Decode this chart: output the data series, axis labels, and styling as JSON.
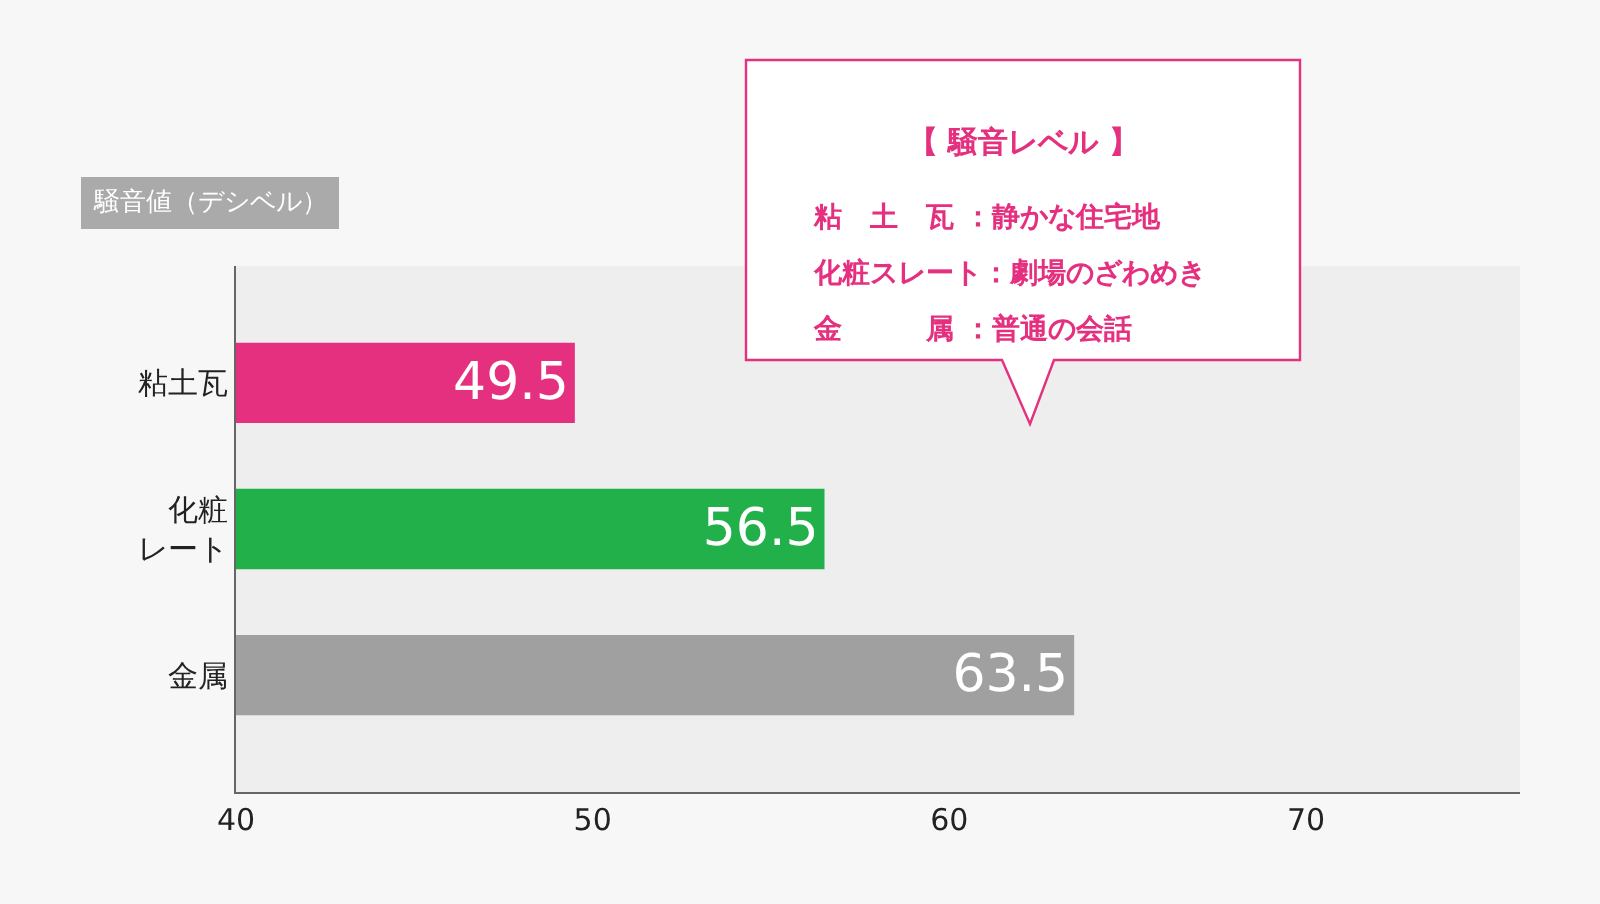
{
  "chart_data": {
    "type": "bar",
    "orientation": "horizontal",
    "xlabel": "騒音値（デシベル）",
    "categories": [
      "粘土瓦",
      "化粧レート",
      "金属"
    ],
    "values": [
      49.5,
      56.5,
      63.5
    ],
    "colors": [
      "#e5307f",
      "#22b04a",
      "#a0a0a0"
    ],
    "xlim": [
      40,
      76
    ],
    "xticks": [
      40,
      50,
      60,
      70
    ],
    "data_labels": true,
    "grid": false,
    "legend": false,
    "annotations": [
      "【 騒音レベル 】",
      "粘　土　瓦 ：静かな住宅地",
      "化粧スレート：劇場のざわめき",
      "金　　　属 ：普通の会話"
    ]
  }
}
